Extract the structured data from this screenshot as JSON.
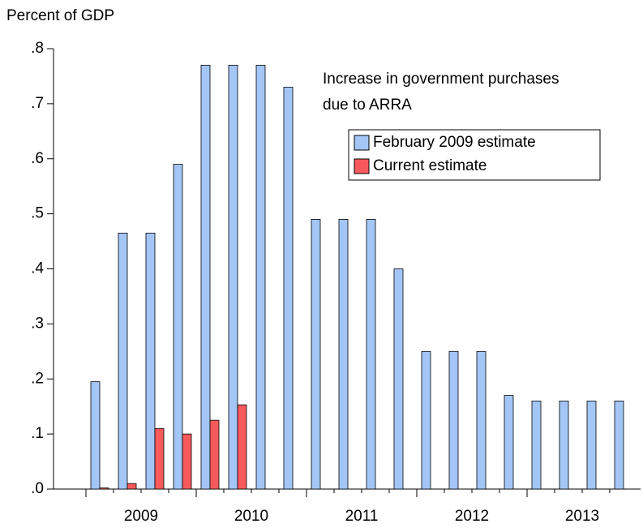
{
  "chart_data": {
    "type": "bar",
    "y_axis_label": "Percent of GDP",
    "annotation": [
      "Increase in government purchases",
      "due to ARRA"
    ],
    "categories": [
      "2009",
      "2010",
      "2011",
      "2012",
      "2013"
    ],
    "series": [
      {
        "name": "February 2009 estimate",
        "color": "#a3c6f6",
        "values": [
          [
            0.195,
            0.465,
            0.465,
            0.59
          ],
          [
            0.77,
            0.77,
            0.77,
            0.73
          ],
          [
            0.49,
            0.49,
            0.49,
            0.4
          ],
          [
            0.25,
            0.25,
            0.25,
            0.17
          ],
          [
            0.16,
            0.16,
            0.16,
            0.16
          ]
        ]
      },
      {
        "name": "Current estimate",
        "color": "#f75a5a",
        "values": [
          [
            0.002,
            0.01,
            0.11,
            0.1
          ],
          [
            0.125,
            0.153,
            0,
            0
          ],
          [
            0,
            0,
            0,
            0
          ],
          [
            0,
            0,
            0,
            0
          ],
          [
            0,
            0,
            0,
            0
          ]
        ]
      }
    ],
    "ylim": [
      0,
      0.8
    ],
    "yticks": [
      {
        "value": 0,
        "label": ".0"
      },
      {
        "value": 0.1,
        "label": ".1"
      },
      {
        "value": 0.2,
        "label": ".2"
      },
      {
        "value": 0.3,
        "label": ".3"
      },
      {
        "value": 0.4,
        "label": ".4"
      },
      {
        "value": 0.5,
        "label": ".5"
      },
      {
        "value": 0.6,
        "label": ".6"
      },
      {
        "value": 0.7,
        "label": ".7"
      },
      {
        "value": 0.8,
        "label": ".8"
      }
    ],
    "legend": "upper right"
  }
}
